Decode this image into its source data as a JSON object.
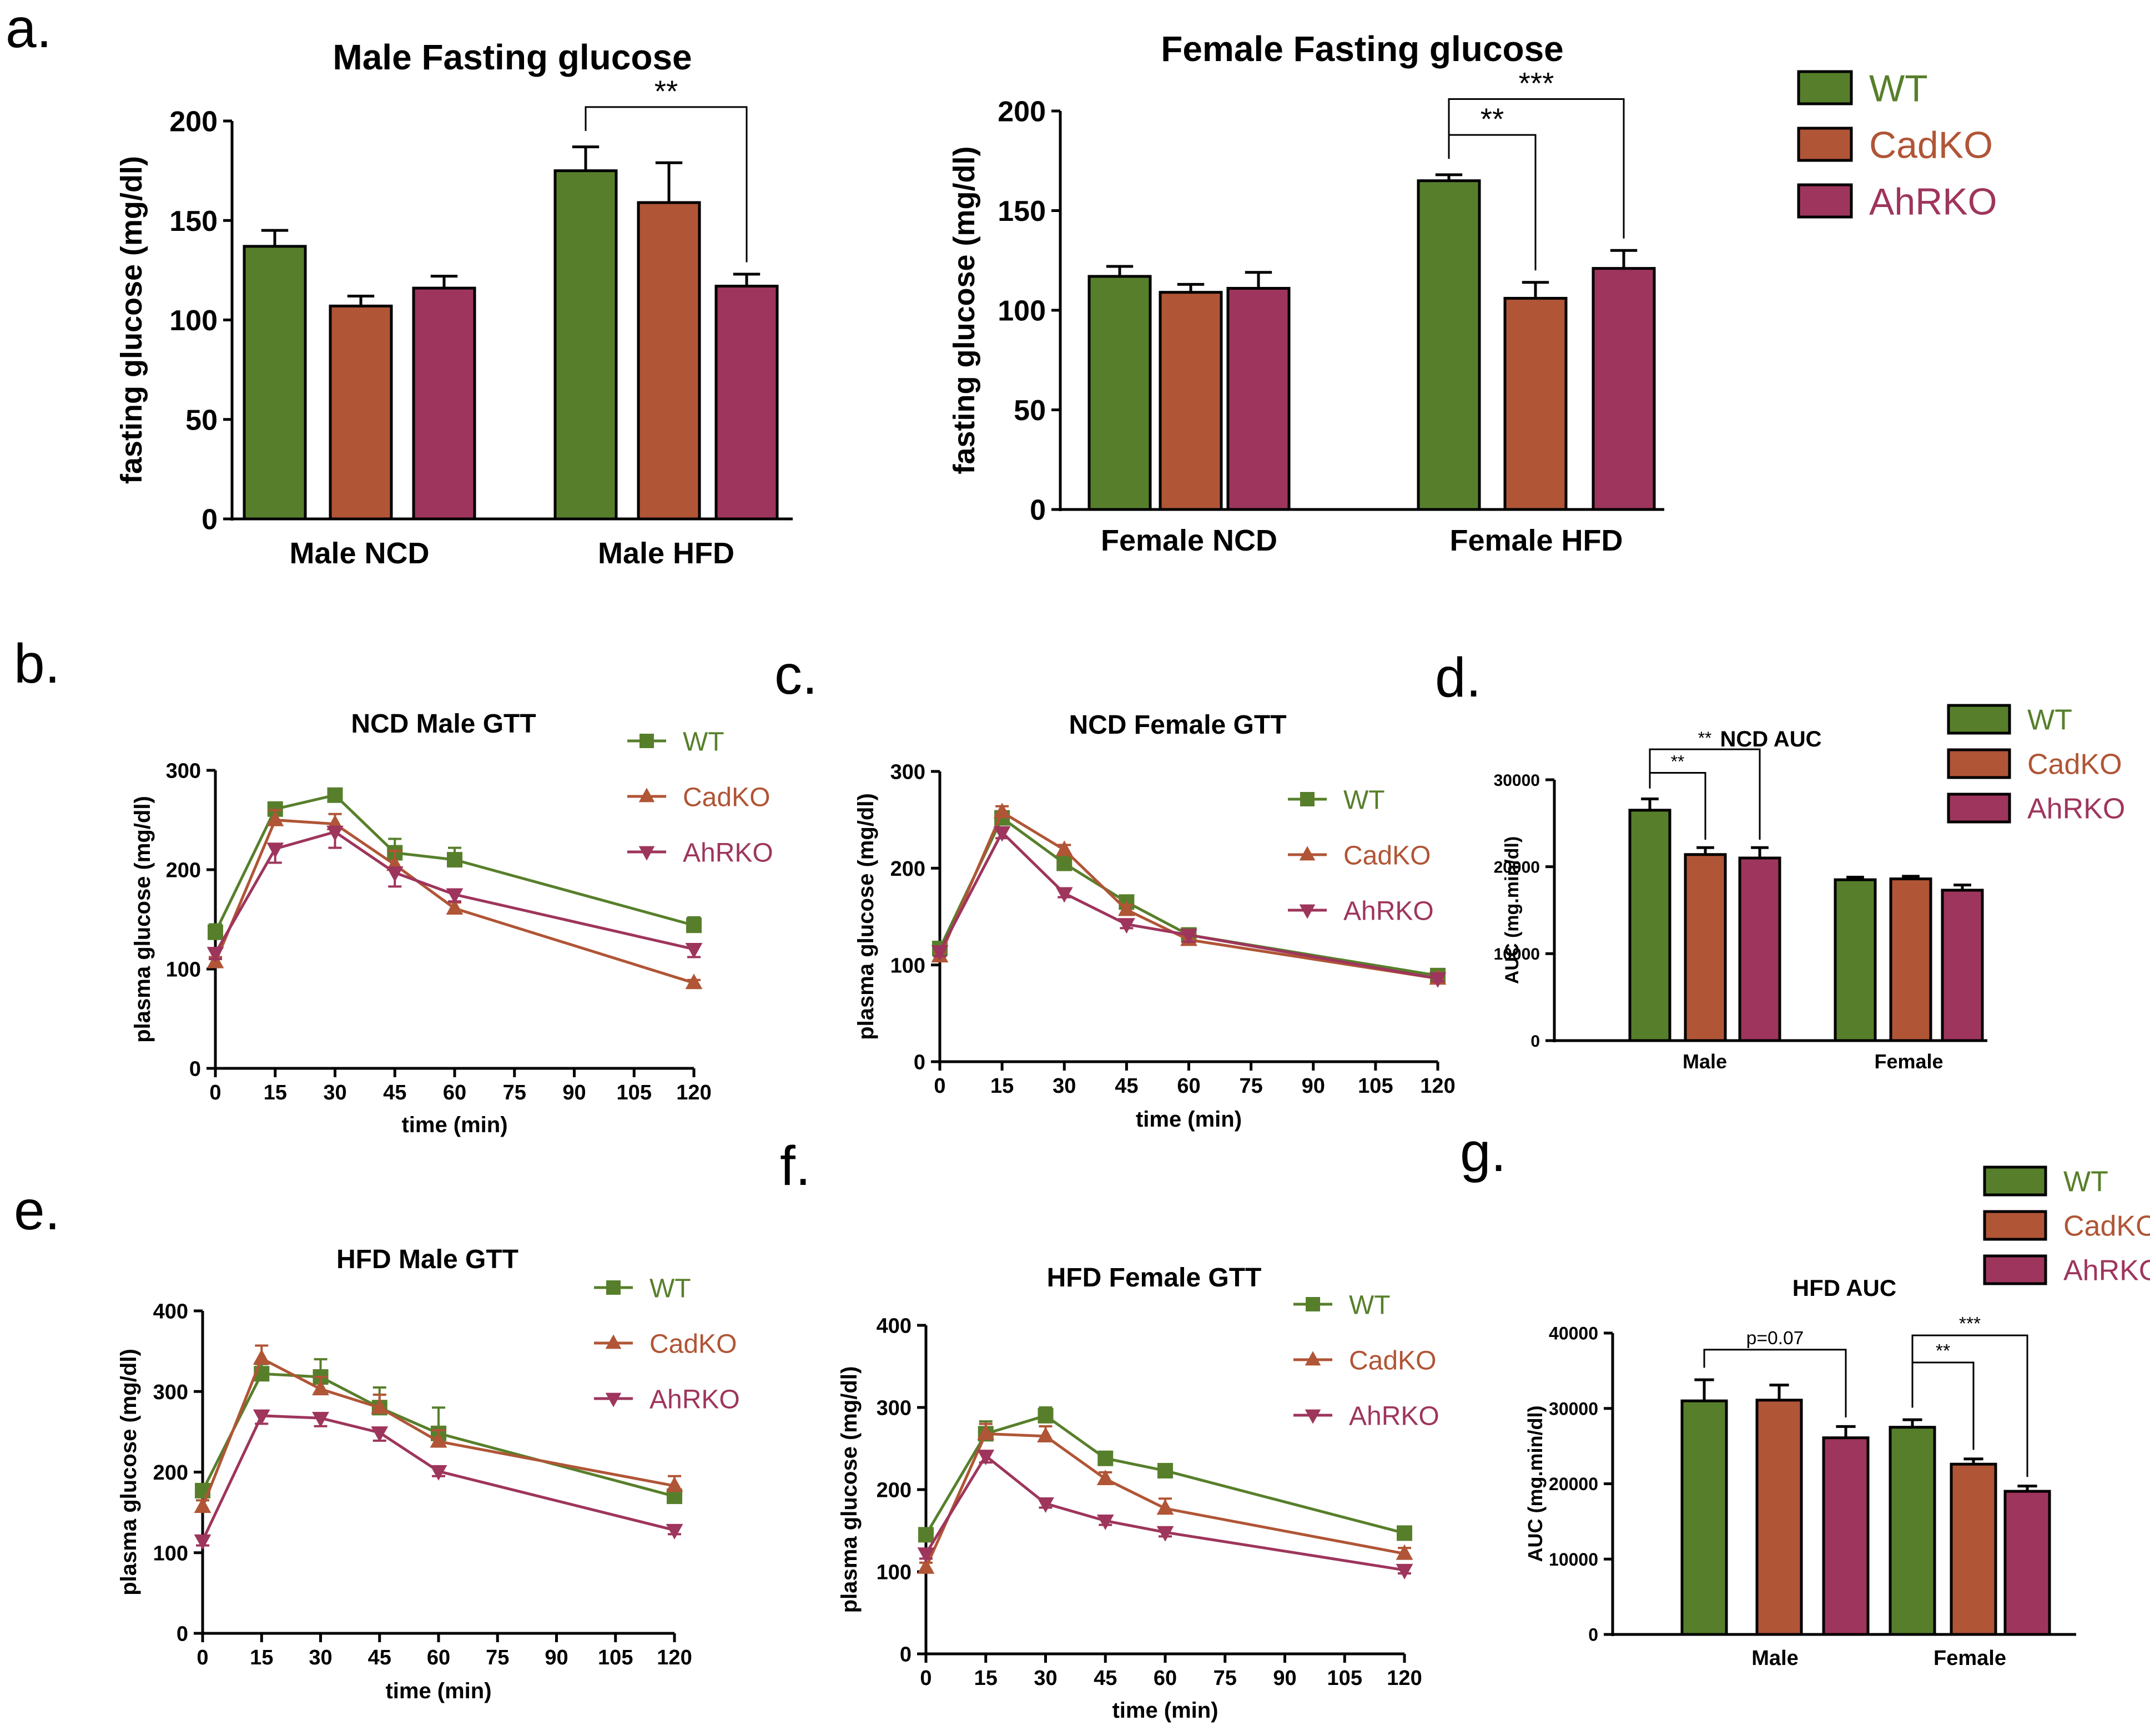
{
  "colors": {
    "WT": "#577f2b",
    "CadKO": "#b05536",
    "AhRKO": "#9e355c",
    "axis": "#000000"
  },
  "icons": {
    "square_marker": "wt-square-icon",
    "triangle_up_marker": "cadko-triangle-icon",
    "triangle_down_marker": "ahrko-triangle-icon"
  },
  "panel_letters": {
    "a": "a.",
    "b": "b.",
    "c": "c.",
    "d": "d.",
    "e": "e.",
    "f": "f.",
    "g": "g."
  },
  "chart_data": [
    {
      "id": "a1",
      "type": "bar",
      "title": "Male Fasting glucose",
      "xlabel": "",
      "ylabel": "fasting glucose (mg/dl)",
      "ylim": [
        0,
        200
      ],
      "yticks": [
        0,
        50,
        100,
        150,
        200
      ],
      "groups": [
        "Male NCD",
        "Male HFD"
      ],
      "series": [
        {
          "name": "WT",
          "values": [
            137,
            175
          ],
          "errors": [
            8,
            12
          ]
        },
        {
          "name": "CadKO",
          "values": [
            107,
            159
          ],
          "errors": [
            5,
            20
          ]
        },
        {
          "name": "AhRKO",
          "values": [
            116,
            117
          ],
          "errors": [
            6,
            6
          ]
        }
      ],
      "annotations": [
        {
          "label": "**",
          "from": [
            1,
            0
          ],
          "to": [
            1,
            2
          ],
          "spans": [
            1,
            1
          ]
        }
      ]
    },
    {
      "id": "a2",
      "type": "bar",
      "title": "Female Fasting glucose",
      "xlabel": "",
      "ylabel": "fasting glucose (mg/dl)",
      "ylim": [
        0,
        200
      ],
      "yticks": [
        0,
        50,
        100,
        150,
        200
      ],
      "groups": [
        "Female NCD",
        "Female HFD"
      ],
      "series": [
        {
          "name": "WT",
          "values": [
            117,
            165
          ],
          "errors": [
            5,
            3
          ]
        },
        {
          "name": "CadKO",
          "values": [
            109,
            106
          ],
          "errors": [
            4,
            8
          ]
        },
        {
          "name": "AhRKO",
          "values": [
            111,
            121
          ],
          "errors": [
            8,
            9
          ]
        }
      ],
      "annotations": [
        {
          "label": "**",
          "from": [
            1,
            0
          ],
          "to": [
            1,
            1
          ]
        },
        {
          "label": "***",
          "from": [
            1,
            0
          ],
          "to": [
            1,
            2
          ]
        }
      ],
      "legend": [
        "WT",
        "CadKO",
        "AhRKO"
      ]
    },
    {
      "id": "b",
      "type": "line",
      "title": "NCD Male GTT",
      "xlabel": "time (min)",
      "ylabel": "plasma glucose (mg/dl)",
      "x": [
        0,
        15,
        30,
        45,
        60,
        120
      ],
      "xlim": [
        0,
        120
      ],
      "xticks": [
        0,
        15,
        30,
        45,
        60,
        75,
        90,
        105,
        120
      ],
      "ylim": [
        0,
        300
      ],
      "yticks": [
        0,
        100,
        200,
        300
      ],
      "series": [
        {
          "name": "WT",
          "values": [
            137,
            261,
            275,
            217,
            210,
            144
          ],
          "errors": [
            8,
            6,
            5,
            14,
            12,
            8
          ]
        },
        {
          "name": "CadKO",
          "values": [
            107,
            250,
            246,
            205,
            161,
            86
          ],
          "errors": [
            5,
            10,
            10,
            14,
            6,
            3
          ]
        },
        {
          "name": "AhRKO",
          "values": [
            116,
            221,
            238,
            197,
            175,
            120
          ],
          "errors": [
            6,
            14,
            16,
            14,
            7,
            8
          ]
        }
      ],
      "legend": [
        "WT",
        "CadKO",
        "AhRKO"
      ]
    },
    {
      "id": "c",
      "type": "line",
      "title": "NCD Female GTT",
      "xlabel": "time (min)",
      "ylabel": "plasma glucose (mg/dl)",
      "x": [
        0,
        15,
        30,
        45,
        60,
        120
      ],
      "xlim": [
        0,
        120
      ],
      "xticks": [
        0,
        15,
        30,
        45,
        60,
        75,
        90,
        105,
        120
      ],
      "ylim": [
        0,
        300
      ],
      "yticks": [
        0,
        100,
        200,
        300
      ],
      "series": [
        {
          "name": "WT",
          "values": [
            117,
            252,
            205,
            165,
            131,
            89
          ],
          "errors": [
            4,
            6,
            5,
            5,
            6,
            3
          ]
        },
        {
          "name": "CadKO",
          "values": [
            109,
            258,
            219,
            157,
            126,
            86
          ],
          "errors": [
            4,
            6,
            5,
            5,
            5,
            3
          ]
        },
        {
          "name": "AhRKO",
          "values": [
            114,
            237,
            174,
            142,
            131,
            86
          ],
          "errors": [
            5,
            6,
            4,
            4,
            7,
            3
          ]
        }
      ],
      "legend": [
        "WT",
        "CadKO",
        "AhRKO"
      ]
    },
    {
      "id": "d",
      "type": "bar",
      "title": "NCD AUC",
      "xlabel": "",
      "ylabel": "AUC (mg.min/dl)",
      "ylim": [
        0,
        30000
      ],
      "yticks": [
        0,
        10000,
        20000,
        30000
      ],
      "groups": [
        "Male",
        "Female"
      ],
      "series": [
        {
          "name": "WT",
          "values": [
            26500,
            18500
          ],
          "errors": [
            1300,
            300
          ]
        },
        {
          "name": "CadKO",
          "values": [
            21400,
            18600
          ],
          "errors": [
            800,
            300
          ]
        },
        {
          "name": "AhRKO",
          "values": [
            21000,
            17300
          ],
          "errors": [
            1200,
            600
          ]
        }
      ],
      "annotations": [
        {
          "label": "**",
          "from": [
            0,
            0
          ],
          "to": [
            0,
            1
          ]
        },
        {
          "label": "**",
          "from": [
            0,
            0
          ],
          "to": [
            0,
            2
          ]
        }
      ],
      "legend": [
        "WT",
        "CadKO",
        "AhRKO"
      ]
    },
    {
      "id": "e",
      "type": "line",
      "title": "HFD Male GTT",
      "xlabel": "time (min)",
      "ylabel": "plasma glucose (mg/dl)",
      "x": [
        0,
        15,
        30,
        45,
        60,
        120
      ],
      "xlim": [
        0,
        120
      ],
      "xticks": [
        0,
        15,
        30,
        45,
        60,
        75,
        90,
        105,
        120
      ],
      "ylim": [
        0,
        400
      ],
      "yticks": [
        0,
        100,
        200,
        300,
        400
      ],
      "series": [
        {
          "name": "WT",
          "values": [
            177,
            322,
            318,
            280,
            248,
            170
          ],
          "errors": [
            8,
            12,
            22,
            25,
            32,
            8
          ]
        },
        {
          "name": "CadKO",
          "values": [
            157,
            341,
            303,
            280,
            238,
            183
          ],
          "errors": [
            8,
            16,
            15,
            16,
            14,
            12
          ]
        },
        {
          "name": "AhRKO",
          "values": [
            115,
            270,
            267,
            249,
            201,
            128
          ],
          "errors": [
            6,
            10,
            10,
            10,
            6,
            5
          ]
        }
      ],
      "legend": [
        "WT",
        "CadKO",
        "AhRKO"
      ]
    },
    {
      "id": "f",
      "type": "line",
      "title": "HFD Female GTT",
      "xlabel": "time (min)",
      "ylabel": "plasma glucose (mg/dl)",
      "x": [
        0,
        15,
        30,
        45,
        60,
        120
      ],
      "xlim": [
        0,
        120
      ],
      "xticks": [
        0,
        15,
        30,
        45,
        60,
        75,
        90,
        105,
        120
      ],
      "ylim": [
        0,
        400
      ],
      "yticks": [
        0,
        100,
        200,
        300,
        400
      ],
      "series": [
        {
          "name": "WT",
          "values": [
            145,
            268,
            290,
            238,
            223,
            147
          ],
          "errors": [
            6,
            15,
            10,
            8,
            8,
            5
          ]
        },
        {
          "name": "CadKO",
          "values": [
            105,
            268,
            265,
            213,
            177,
            122
          ],
          "errors": [
            6,
            12,
            12,
            8,
            12,
            7
          ]
        },
        {
          "name": "AhRKO",
          "values": [
            122,
            241,
            183,
            162,
            148,
            102
          ],
          "errors": [
            6,
            8,
            5,
            5,
            5,
            4
          ]
        }
      ],
      "legend": [
        "WT",
        "CadKO",
        "AhRKO"
      ]
    },
    {
      "id": "g",
      "type": "bar",
      "title": "HFD AUC",
      "xlabel": "",
      "ylabel": "AUC (mg.min/dl)",
      "ylim": [
        0,
        40000
      ],
      "yticks": [
        0,
        10000,
        20000,
        30000,
        40000
      ],
      "groups": [
        "Male",
        "Female"
      ],
      "series": [
        {
          "name": "WT",
          "values": [
            31000,
            27500
          ],
          "errors": [
            2800,
            1000
          ]
        },
        {
          "name": "CadKO",
          "values": [
            31100,
            22600
          ],
          "errors": [
            2000,
            700
          ]
        },
        {
          "name": "AhRKO",
          "values": [
            26100,
            19000
          ],
          "errors": [
            1500,
            700
          ]
        }
      ],
      "annotations": [
        {
          "label": "p=0.07",
          "from": [
            0,
            0
          ],
          "to": [
            0,
            2
          ]
        },
        {
          "label": "**",
          "from": [
            1,
            0
          ],
          "to": [
            1,
            1
          ]
        },
        {
          "label": "***",
          "from": [
            1,
            0
          ],
          "to": [
            1,
            2
          ]
        }
      ],
      "legend": [
        "WT",
        "CadKO",
        "AhRKO"
      ]
    }
  ]
}
